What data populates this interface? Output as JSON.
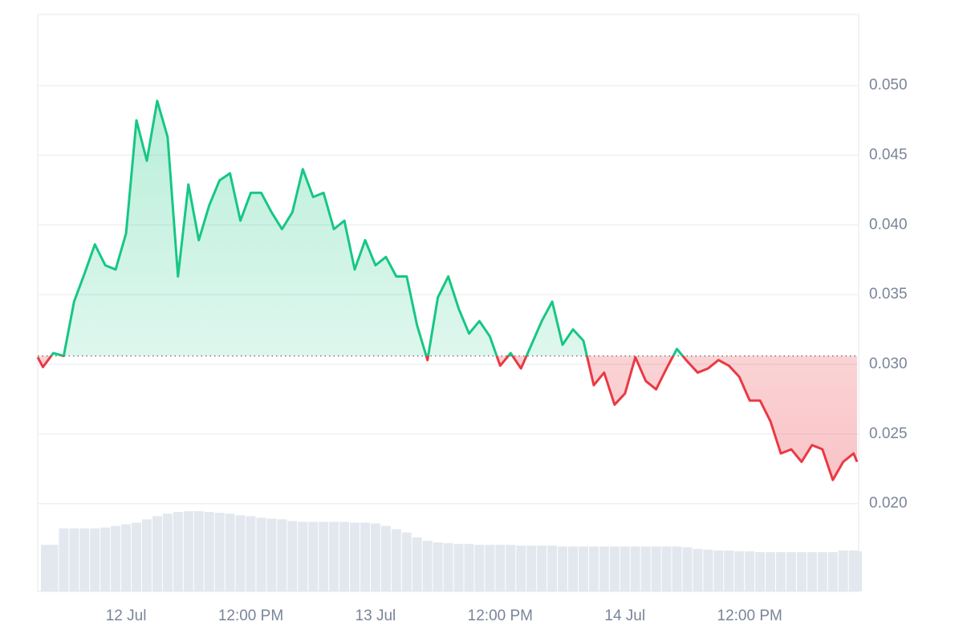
{
  "chart_data": {
    "type": "line",
    "x": [
      "11 Jul 15:30",
      "11 Jul 16:00",
      "11 Jul 17:00",
      "11 Jul 18:00",
      "11 Jul 19:00",
      "11 Jul 20:00",
      "11 Jul 21:00",
      "11 Jul 22:00",
      "11 Jul 23:00",
      "12 Jul 00:00",
      "12 Jul 01:00",
      "12 Jul 02:00",
      "12 Jul 03:00",
      "12 Jul 04:00",
      "12 Jul 05:00",
      "12 Jul 06:00",
      "12 Jul 07:00",
      "12 Jul 08:00",
      "12 Jul 09:00",
      "12 Jul 10:00",
      "12 Jul 11:00",
      "12 Jul 12:00",
      "12 Jul 13:00",
      "12 Jul 14:00",
      "12 Jul 15:00",
      "12 Jul 16:00",
      "12 Jul 17:00",
      "12 Jul 18:00",
      "12 Jul 19:00",
      "12 Jul 20:00",
      "12 Jul 21:00",
      "12 Jul 22:00",
      "12 Jul 23:00",
      "13 Jul 00:00",
      "13 Jul 01:00",
      "13 Jul 02:00",
      "13 Jul 03:00",
      "13 Jul 04:00",
      "13 Jul 05:00",
      "13 Jul 06:00",
      "13 Jul 07:00",
      "13 Jul 08:00",
      "13 Jul 09:00",
      "13 Jul 10:00",
      "13 Jul 11:00",
      "13 Jul 12:00",
      "13 Jul 13:00",
      "13 Jul 14:00",
      "13 Jul 15:00",
      "13 Jul 16:00",
      "13 Jul 17:00",
      "13 Jul 18:00",
      "13 Jul 19:00",
      "13 Jul 20:00",
      "13 Jul 21:00",
      "13 Jul 22:00",
      "13 Jul 23:00",
      "14 Jul 00:00",
      "14 Jul 01:00",
      "14 Jul 02:00",
      "14 Jul 03:00",
      "14 Jul 04:00",
      "14 Jul 05:00",
      "14 Jul 06:00",
      "14 Jul 07:00",
      "14 Jul 08:00",
      "14 Jul 09:00",
      "14 Jul 10:00",
      "14 Jul 11:00",
      "14 Jul 12:00",
      "14 Jul 13:00",
      "14 Jul 14:00",
      "14 Jul 15:00",
      "14 Jul 16:00",
      "14 Jul 17:00",
      "14 Jul 18:00",
      "14 Jul 19:00",
      "14 Jul 20:00",
      "14 Jul 21:00",
      "14 Jul 22:00",
      "14 Jul 22:20"
    ],
    "values": [
      0.0305,
      0.0298,
      0.0308,
      0.0306,
      0.0345,
      0.0365,
      0.0386,
      0.0371,
      0.0368,
      0.0394,
      0.0475,
      0.0446,
      0.0489,
      0.0463,
      0.0363,
      0.0429,
      0.0389,
      0.0414,
      0.0432,
      0.0437,
      0.0403,
      0.0423,
      0.0423,
      0.0409,
      0.0397,
      0.0409,
      0.044,
      0.042,
      0.0423,
      0.0397,
      0.0403,
      0.0368,
      0.0389,
      0.0371,
      0.0377,
      0.0363,
      0.0363,
      0.0328,
      0.0303,
      0.0348,
      0.0363,
      0.034,
      0.0322,
      0.0331,
      0.032,
      0.0299,
      0.0308,
      0.0297,
      0.0314,
      0.0331,
      0.0345,
      0.0314,
      0.0325,
      0.0317,
      0.0285,
      0.0294,
      0.0271,
      0.0279,
      0.0305,
      0.0288,
      0.0282,
      0.0297,
      0.0311,
      0.0302,
      0.0294,
      0.0297,
      0.0303,
      0.0299,
      0.0291,
      0.0274,
      0.0274,
      0.0259,
      0.0236,
      0.0239,
      0.023,
      0.0242,
      0.0239,
      0.0217,
      0.023,
      0.0236,
      0.023
    ],
    "volume": [
      25,
      57,
      57,
      77,
      77,
      77,
      77,
      78,
      80,
      82,
      84,
      88,
      92,
      95,
      97,
      98,
      98,
      97,
      96,
      95,
      93,
      92,
      90,
      89,
      88,
      86,
      85,
      85,
      85,
      85,
      85,
      84,
      84,
      83,
      80,
      76,
      72,
      66,
      62,
      60,
      59,
      58,
      58,
      57,
      57,
      57,
      57,
      56,
      56,
      56,
      56,
      55,
      55,
      55,
      55,
      55,
      55,
      55,
      55,
      55,
      55,
      55,
      55,
      54,
      52,
      51,
      50,
      50,
      49,
      49,
      48,
      48,
      48,
      48,
      48,
      48,
      48,
      48,
      50,
      50,
      49
    ],
    "baseline": 0.0306,
    "above_color": "#16c784",
    "below_color": "#ea3943",
    "volume_color": "#e3e8ef",
    "xlim": [
      "11 Jul 15:30",
      "14 Jul 22:20"
    ],
    "xticks": [
      {
        "value": "12 Jul 00:00",
        "label": "12 Jul"
      },
      {
        "value": "12 Jul 12:00",
        "label": "12:00 PM"
      },
      {
        "value": "13 Jul 00:00",
        "label": "13 Jul"
      },
      {
        "value": "13 Jul 12:00",
        "label": "12:00 PM"
      },
      {
        "value": "14 Jul 00:00",
        "label": "14 Jul"
      },
      {
        "value": "14 Jul 12:00",
        "label": "12:00 PM"
      }
    ],
    "ylim": [
      0.0137,
      0.0551
    ],
    "yticks": [
      {
        "value": 0.02,
        "label": "0.020"
      },
      0.025,
      {
        "value": 0.03,
        "label": "0.030"
      },
      0.035,
      {
        "value": 0.04,
        "label": "0.040"
      },
      0.045,
      {
        "value": 0.05,
        "label": "0.050"
      }
    ],
    "grid": true
  }
}
